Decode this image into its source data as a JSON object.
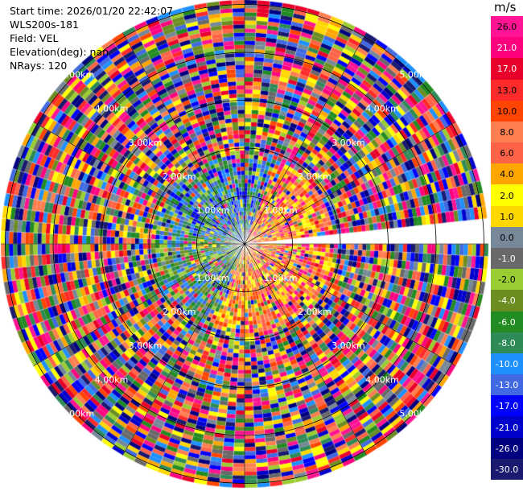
{
  "info": {
    "start_time": "Start time: 2026/01/20 22:42:07",
    "instrument": "WLS200s-181",
    "field": "Field: VEL",
    "elevation": "Elevation(deg): nan",
    "nrays": "NRays: 120"
  },
  "colorbar": {
    "unit": "m/s",
    "levels": [
      {
        "label": "26.0",
        "color": "#ff1493"
      },
      {
        "label": "21.0",
        "color": "#ff007f"
      },
      {
        "label": "17.0",
        "color": "#e8002a"
      },
      {
        "label": "13.0",
        "color": "#ff2a2a"
      },
      {
        "label": "10.0",
        "color": "#ff4500"
      },
      {
        "label": "8.0",
        "color": "#ff7f50"
      },
      {
        "label": "6.0",
        "color": "#ff6347"
      },
      {
        "label": "4.0",
        "color": "#ffa500"
      },
      {
        "label": "2.0",
        "color": "#ffff00"
      },
      {
        "label": "1.0",
        "color": "#ffd700"
      },
      {
        "label": "0.0",
        "color": "#778899"
      },
      {
        "label": "-1.0",
        "color": "#696969"
      },
      {
        "label": "-2.0",
        "color": "#9acd32"
      },
      {
        "label": "-4.0",
        "color": "#6b8e23"
      },
      {
        "label": "-6.0",
        "color": "#228b22"
      },
      {
        "label": "-8.0",
        "color": "#2e8b57"
      },
      {
        "label": "-10.0",
        "color": "#1e90ff"
      },
      {
        "label": "-13.0",
        "color": "#4169e1"
      },
      {
        "label": "-17.0",
        "color": "#0000ff"
      },
      {
        "label": "-21.0",
        "color": "#0000cd"
      },
      {
        "label": "-26.0",
        "color": "#000080"
      },
      {
        "label": "-30.0",
        "color": "#191970"
      }
    ]
  },
  "rings": {
    "labels": [
      "1.00km",
      "2.00km",
      "3.00km",
      "4.00km",
      "5.00km"
    ]
  },
  "plot": {
    "nrays": 120,
    "gates": 60,
    "missing_sector_deg": [
      84,
      90
    ]
  }
}
